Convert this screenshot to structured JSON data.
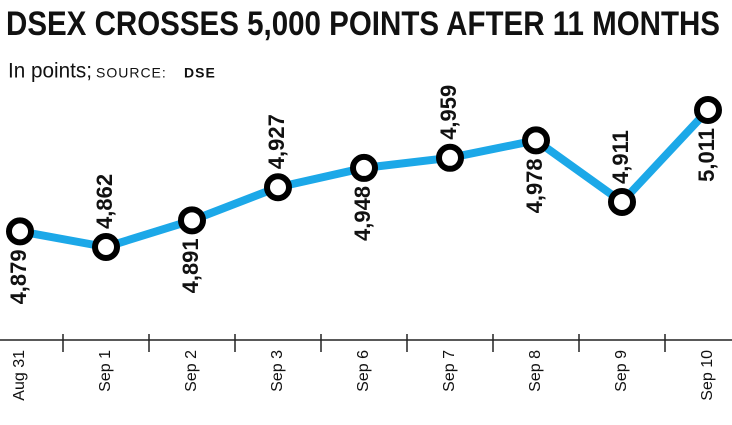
{
  "chart_data": {
    "type": "line",
    "title": "DSEX CROSSES 5,000 POINTS AFTER 11 MONTHS",
    "subtitle": "In points;",
    "source_label": "SOURCE:",
    "source": "DSE",
    "categories": [
      "Aug 31",
      "Sep 1",
      "Sep 2",
      "Sep 3",
      "Sep 6",
      "Sep 7",
      "Sep 8",
      "Sep 9",
      "Sep 10"
    ],
    "series": [
      {
        "color": "#1ca8e8",
        "values": [
          4879,
          4862,
          4891,
          4927,
          4948,
          4959,
          4978,
          4911,
          5011
        ],
        "value_labels": [
          "4,879",
          "4,862",
          "4,891",
          "4,927",
          "4,948",
          "4,959",
          "4,978",
          "4,911",
          "5,011"
        ]
      }
    ]
  }
}
